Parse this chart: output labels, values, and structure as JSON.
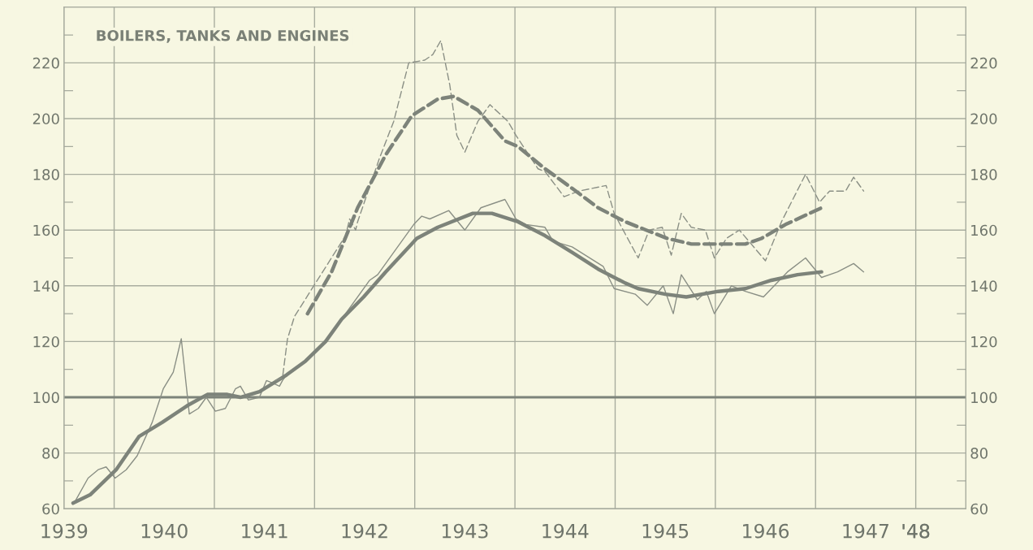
{
  "chart_data": {
    "type": "line",
    "title": "BOILERS, TANKS AND ENGINES",
    "xlim": [
      1939.5,
      1948.5
    ],
    "xticks": [
      {
        "value": 1939.5,
        "label": "1939"
      },
      {
        "value": 1940,
        "label": null
      },
      {
        "value": 1940.5,
        "label": "1940"
      },
      {
        "value": 1941,
        "label": null
      },
      {
        "value": 1941.5,
        "label": "1941"
      },
      {
        "value": 1942,
        "label": null
      },
      {
        "value": 1942.5,
        "label": "1942"
      },
      {
        "value": 1943,
        "label": null
      },
      {
        "value": 1943.5,
        "label": "1943"
      },
      {
        "value": 1944,
        "label": null
      },
      {
        "value": 1944.5,
        "label": "1944"
      },
      {
        "value": 1945,
        "label": null
      },
      {
        "value": 1945.5,
        "label": "1945"
      },
      {
        "value": 1946,
        "label": null
      },
      {
        "value": 1946.5,
        "label": "1946"
      },
      {
        "value": 1947,
        "label": null
      },
      {
        "value": 1947.5,
        "label": "1947"
      },
      {
        "value": 1948,
        "label": null
      },
      {
        "value": 1948,
        "label": "'48"
      }
    ],
    "ylim": [
      60,
      240
    ],
    "yticks": [
      60,
      {
        "value": 70,
        "label": null
      },
      80,
      {
        "value": 90,
        "label": null
      },
      100,
      {
        "value": 110,
        "label": null
      },
      120,
      {
        "value": 130,
        "label": null
      },
      140,
      {
        "value": 150,
        "label": null
      },
      160,
      {
        "value": 170,
        "label": null
      },
      180,
      {
        "value": 190,
        "label": null
      },
      200,
      {
        "value": 210,
        "label": null
      },
      220,
      {
        "value": 230,
        "label": null
      }
    ],
    "y2lim": [
      60,
      240
    ],
    "y2ticks": [
      60,
      {
        "value": 70,
        "label": null
      },
      80,
      {
        "value": 90,
        "label": null
      },
      100,
      {
        "value": 110,
        "label": null
      },
      120,
      {
        "value": 130,
        "label": null
      },
      140,
      {
        "value": 150,
        "label": null
      },
      160,
      {
        "value": 170,
        "label": null
      },
      180,
      {
        "value": 190,
        "label": null
      },
      200,
      {
        "value": 210,
        "label": null
      },
      220,
      {
        "value": 230,
        "label": null
      }
    ],
    "grid": true,
    "marker": "none",
    "ref_lines": [
      {
        "axis": "y",
        "value": 100,
        "color": "#7d837a"
      }
    ],
    "series": [
      {
        "color": "#8a8f85",
        "line_style": "solid",
        "x": [
          1939.6,
          1939.74,
          1939.84,
          1939.92,
          1940.01,
          1940.12,
          1940.23,
          1940.38,
          1940.49,
          1940.59,
          1940.67,
          1940.75,
          1940.84,
          1940.92,
          1941.01,
          1941.11,
          1941.21,
          1941.26,
          1941.34,
          1941.45,
          1941.52,
          1941.59,
          1941.65,
          1941.68,
          1941.72,
          1941.91,
          1942.11,
          1942.27,
          1942.55,
          1942.63,
          1942.79,
          1942.99,
          1943.07,
          1943.15,
          1943.34,
          1943.5,
          1943.66,
          1943.9,
          1944.01,
          1944.11,
          1944.3,
          1944.38,
          1944.57,
          1944.88,
          1944.99,
          1945.2,
          1945.32,
          1945.48,
          1945.58,
          1945.66,
          1945.82,
          1945.91,
          1945.99,
          1946.16,
          1946.3,
          1946.48,
          1946.56,
          1946.72,
          1946.9,
          1947.06,
          1947.22,
          1947.38,
          1947.48
        ],
        "values": [
          62,
          71,
          74,
          75,
          71,
          74,
          79,
          91,
          103,
          109,
          121,
          94,
          96,
          100,
          95,
          96,
          103,
          104,
          99,
          100,
          106,
          105,
          104,
          106,
          108,
          113,
          120,
          128,
          142,
          144,
          152,
          162,
          165,
          164,
          167,
          160,
          168,
          171,
          164,
          162,
          161,
          156,
          154,
          147,
          139,
          137,
          133,
          140,
          130,
          144,
          135,
          138,
          130,
          140,
          138,
          136,
          139,
          145,
          150,
          143,
          145,
          148,
          145
        ]
      },
      {
        "color": "#7d837a",
        "line_style": "solid",
        "x": [
          1939.59,
          1939.76,
          1940.02,
          1940.25,
          1940.48,
          1940.73,
          1940.93,
          1941.13,
          1941.26,
          1941.45,
          1941.72,
          1941.91,
          1942.11,
          1942.27,
          1942.49,
          1942.71,
          1943.02,
          1943.23,
          1943.58,
          1943.77,
          1944.03,
          1944.3,
          1944.57,
          1944.83,
          1945.1,
          1945.23,
          1945.5,
          1945.71,
          1946.03,
          1946.3,
          1946.56,
          1946.82,
          1947.06
        ],
        "values": [
          62,
          65,
          74,
          86,
          91,
          97,
          101,
          101,
          100,
          102,
          108,
          113,
          120,
          128,
          136,
          145,
          157,
          161,
          166,
          166,
          163,
          158,
          152,
          146,
          141,
          139,
          137,
          136,
          138,
          139,
          142,
          144,
          145
        ]
      },
      {
        "color": "#8a8f85",
        "line_style": "dashed",
        "x": [
          1941.61,
          1941.68,
          1941.73,
          1941.8,
          1942.01,
          1942.31,
          1942.35,
          1942.41,
          1942.43,
          1942.65,
          1942.79,
          1942.94,
          1943.1,
          1943.18,
          1943.26,
          1943.35,
          1943.42,
          1943.5,
          1943.63,
          1943.75,
          1943.93,
          1944.01,
          1944.23,
          1944.3,
          1944.49,
          1944.64,
          1944.91,
          1944.99,
          1945.23,
          1945.34,
          1945.47,
          1945.56,
          1945.66,
          1945.76,
          1945.9,
          1945.99,
          1946.11,
          1946.24,
          1946.5,
          1946.66,
          1946.9,
          1947.04,
          1947.14,
          1947.3,
          1947.38,
          1947.48
        ],
        "values": [
          106,
          107,
          121,
          129,
          141,
          158,
          164,
          160,
          163,
          186,
          199,
          220,
          221,
          223,
          228,
          212,
          194,
          188,
          199,
          205,
          199,
          194,
          182,
          181,
          172,
          174,
          176,
          166,
          150,
          160,
          161,
          151,
          166,
          161,
          160,
          150,
          157,
          160,
          149,
          163,
          180,
          170,
          174,
          174,
          179,
          174
        ]
      },
      {
        "color": "#7d837a",
        "line_style": "dashed",
        "x": [
          1941.93,
          1942.17,
          1942.43,
          1942.71,
          1942.97,
          1943.23,
          1943.39,
          1943.63,
          1943.9,
          1944.03,
          1944.3,
          1944.57,
          1944.83,
          1945.1,
          1945.31,
          1945.52,
          1945.76,
          1946.03,
          1946.3,
          1946.46,
          1946.7,
          1947.06
        ],
        "values": [
          130,
          145,
          168,
          187,
          201,
          207,
          208,
          203,
          192,
          190,
          182,
          175,
          168,
          163,
          160,
          157,
          155,
          155,
          155,
          157,
          162,
          168
        ]
      }
    ]
  }
}
